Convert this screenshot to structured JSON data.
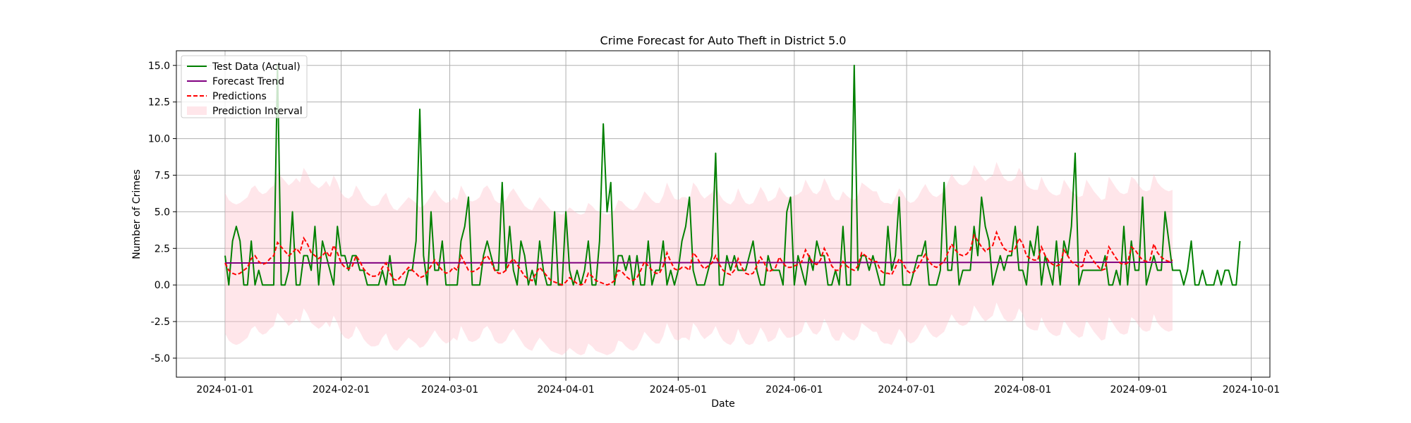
{
  "chart_data": {
    "type": "line",
    "title": "Crime Forecast for Auto Theft in District 5.0",
    "xlabel": "Date",
    "ylabel": "Number of Crimes",
    "x_start": "2024-01-01",
    "x_end": "2024-09-22",
    "xlim": [
      "2023-12-19",
      "2024-10-06"
    ],
    "ylim": [
      -6.3,
      16.0
    ],
    "x_ticks": [
      "2024-01-01",
      "2024-02-01",
      "2024-03-01",
      "2024-04-01",
      "2024-05-01",
      "2024-06-01",
      "2024-07-01",
      "2024-08-01",
      "2024-09-01",
      "2024-10-01"
    ],
    "y_ticks": [
      -5.0,
      -2.5,
      0.0,
      2.5,
      5.0,
      7.5,
      10.0,
      12.5,
      15.0
    ],
    "grid": true,
    "legend_position": "top-left",
    "series": [
      {
        "name": "Test Data (Actual)",
        "color": "#008000",
        "style": "solid",
        "values": [
          2,
          0,
          3,
          4,
          3,
          0,
          0,
          3,
          0,
          1,
          0,
          0,
          0,
          0,
          15,
          0,
          0,
          1,
          5,
          0,
          0,
          2,
          2,
          1,
          4,
          0,
          3,
          2,
          1,
          0,
          4,
          2,
          2,
          1,
          2,
          2,
          1,
          1,
          0,
          0,
          0,
          0,
          1,
          0,
          2,
          0,
          0,
          0,
          0,
          1,
          1,
          3,
          12,
          2,
          0,
          5,
          1,
          1,
          3,
          0,
          0,
          0,
          0,
          3,
          4,
          6,
          0,
          0,
          0,
          2,
          3,
          2,
          1,
          1,
          7,
          1,
          4,
          1,
          0,
          3,
          2,
          0,
          1,
          0,
          3,
          1,
          0,
          0,
          5,
          0,
          0,
          5,
          1,
          0,
          1,
          0,
          1,
          3,
          0,
          0,
          3,
          11,
          5,
          7,
          0,
          2,
          2,
          1,
          2,
          0,
          2,
          0,
          0,
          3,
          0,
          1,
          1,
          3,
          0,
          1,
          0,
          1,
          3,
          4,
          6,
          1,
          0,
          0,
          0,
          1,
          2,
          9,
          0,
          0,
          2,
          1,
          2,
          1,
          1,
          1,
          2,
          3,
          1,
          0,
          0,
          2,
          1,
          1,
          1,
          0,
          5,
          6,
          0,
          2,
          1,
          0,
          2,
          1,
          3,
          2,
          2,
          0,
          0,
          1,
          0,
          4,
          0,
          0,
          15,
          1,
          2,
          2,
          1,
          2,
          1,
          0,
          0,
          4,
          1,
          2,
          6,
          0,
          0,
          0,
          1,
          2,
          2,
          3,
          0,
          0,
          0,
          1,
          7,
          1,
          1,
          4,
          0,
          1,
          1,
          1,
          4,
          2,
          6,
          4,
          3,
          0,
          1,
          2,
          1,
          2,
          2,
          4,
          1,
          1,
          0,
          3,
          2,
          4,
          0,
          2,
          1,
          0,
          3,
          0,
          3,
          2,
          4,
          9,
          0,
          1,
          1,
          1,
          1,
          1,
          1,
          2,
          0,
          0,
          1,
          0,
          4,
          0,
          3,
          1,
          1,
          6,
          0,
          1,
          2,
          1,
          1,
          5,
          3,
          1,
          1,
          1,
          0,
          1,
          3,
          0,
          0,
          1,
          0,
          0,
          0,
          1,
          0,
          1,
          1,
          0,
          0,
          3
        ]
      },
      {
        "name": "Forecast Trend",
        "color": "#800080",
        "style": "solid",
        "values_start": 1.5,
        "values_end": 1.55
      },
      {
        "name": "Predictions",
        "color": "#ff0000",
        "style": "dashed",
        "values": [
          1.5,
          1.0,
          0.8,
          0.7,
          0.8,
          1.0,
          1.2,
          1.8,
          2.0,
          1.6,
          1.4,
          1.5,
          1.8,
          2.0,
          2.9,
          2.6,
          2.3,
          2.0,
          2.2,
          2.5,
          2.2,
          3.2,
          2.8,
          2.2,
          2.0,
          1.8,
          2.0,
          2.3,
          1.9,
          2.7,
          2.2,
          1.5,
          1.2,
          1.1,
          1.3,
          2.0,
          1.6,
          1.1,
          0.8,
          0.6,
          0.6,
          0.7,
          1.2,
          1.5,
          0.8,
          0.4,
          0.3,
          0.6,
          0.9,
          1.2,
          1.0,
          0.8,
          0.5,
          0.6,
          0.9,
          1.3,
          1.7,
          1.3,
          1.0,
          0.8,
          0.9,
          1.2,
          1.0,
          2.0,
          1.5,
          1.0,
          0.9,
          1.0,
          1.2,
          1.8,
          2.0,
          1.6,
          1.0,
          0.8,
          0.8,
          1.0,
          1.5,
          1.8,
          1.4,
          1.0,
          0.6,
          0.4,
          0.3,
          0.8,
          1.2,
          0.9,
          0.6,
          0.3,
          0.2,
          0.1,
          0.0,
          0.2,
          0.5,
          0.3,
          0.1,
          0.0,
          0.1,
          0.8,
          0.6,
          0.3,
          0.2,
          0.1,
          0.0,
          0.1,
          0.3,
          1.0,
          0.9,
          0.6,
          0.4,
          0.3,
          0.5,
          1.0,
          1.6,
          1.3,
          1.0,
          0.8,
          0.8,
          1.3,
          2.2,
          1.6,
          1.1,
          1.0,
          1.2,
          1.2,
          1.0,
          2.2,
          1.9,
          1.4,
          1.1,
          1.3,
          1.5,
          2.0,
          1.4,
          1.0,
          0.8,
          0.7,
          1.0,
          1.8,
          1.2,
          0.8,
          0.7,
          0.8,
          1.3,
          1.9,
          1.5,
          0.9,
          1.0,
          1.2,
          1.9,
          1.5,
          1.2,
          1.2,
          1.3,
          1.4,
          1.6,
          2.4,
          1.9,
          1.5,
          1.4,
          1.7,
          2.5,
          2.0,
          1.3,
          1.0,
          1.0,
          1.6,
          1.3,
          1.1,
          1.0,
          1.3,
          2.2,
          2.0,
          1.8,
          1.6,
          1.6,
          1.0,
          0.8,
          0.8,
          0.7,
          1.2,
          1.8,
          1.5,
          1.0,
          0.8,
          0.9,
          1.2,
          1.7,
          2.1,
          1.6,
          1.3,
          1.2,
          1.4,
          1.6,
          2.2,
          2.8,
          2.4,
          2.1,
          2.0,
          2.1,
          2.4,
          3.4,
          3.0,
          2.6,
          2.3,
          2.5,
          2.7,
          3.6,
          3.0,
          2.5,
          2.3,
          2.3,
          2.5,
          3.2,
          2.8,
          2.0,
          1.8,
          1.7,
          1.7,
          2.6,
          2.0,
          1.6,
          1.4,
          1.3,
          1.4,
          2.4,
          2.0,
          1.6,
          1.4,
          1.2,
          1.3,
          2.4,
          2.0,
          1.6,
          1.3,
          1.0,
          1.1,
          2.6,
          2.2,
          1.8,
          1.5,
          1.4,
          1.5,
          2.6,
          2.4,
          2.0,
          1.7,
          1.6,
          1.7,
          2.8,
          2.2,
          1.9,
          1.7,
          1.6,
          1.7
        ]
      },
      {
        "name": "Prediction Interval",
        "color": "#ffc0cb",
        "style": "fill",
        "offset": 4.8
      }
    ]
  }
}
